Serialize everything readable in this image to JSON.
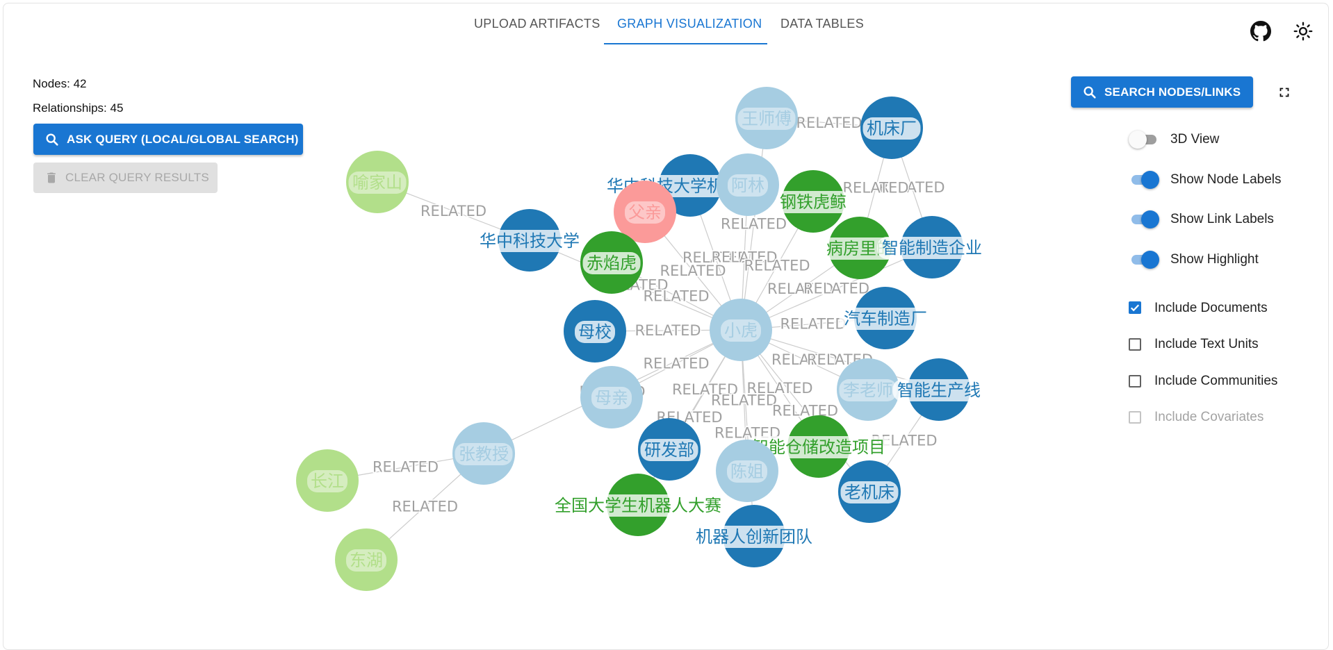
{
  "tabs": [
    {
      "label": "UPLOAD ARTIFACTS"
    },
    {
      "label": "GRAPH VISUALIZATION"
    },
    {
      "label": "DATA TABLES"
    }
  ],
  "active_tab": "GRAPH VISUALIZATION",
  "header_icons": [
    "github-icon",
    "sun-icon"
  ],
  "stats": {
    "nodes": "Nodes: 42",
    "relationships": "Relationships: 45"
  },
  "query": {
    "ask_label": "ASK QUERY (LOCAL/GLOBAL SEARCH)",
    "clear_label": "CLEAR QUERY RESULTS"
  },
  "search": {
    "label": "SEARCH NODES/LINKS"
  },
  "controls": {
    "switches": [
      {
        "label": "3D View",
        "on": false
      },
      {
        "label": "Show Node Labels",
        "on": true
      },
      {
        "label": "Show Link Labels",
        "on": true
      },
      {
        "label": "Show Highlight",
        "on": true
      }
    ],
    "checkboxes": [
      {
        "label": "Include Documents",
        "checked": true,
        "disabled": false
      },
      {
        "label": "Include Text Units",
        "checked": false,
        "disabled": false
      },
      {
        "label": "Include Communities",
        "checked": false,
        "disabled": false
      },
      {
        "label": "Include Covariates",
        "checked": false,
        "disabled": true
      }
    ]
  },
  "colors": {
    "accent": "#1976d2",
    "node_light_blue": "#a6cde2",
    "node_dark_blue": "#1f78b4",
    "node_green": "#33a02c",
    "node_light_green": "#b2df8a",
    "node_pink": "#fb9a99",
    "link": "#cccccc",
    "link_label": "#a0a0a0"
  },
  "graph": {
    "link_label": "RELATED",
    "nodes": [
      {
        "id": "王师傅",
        "group": "light_blue"
      },
      {
        "id": "机床厂",
        "group": "dark_blue"
      },
      {
        "id": "喻家山",
        "group": "light_green"
      },
      {
        "id": "华中科技大学机械学院",
        "group": "dark_blue"
      },
      {
        "id": "阿林",
        "group": "light_blue"
      },
      {
        "id": "钢铁虎鲸",
        "group": "green"
      },
      {
        "id": "父亲",
        "group": "pink"
      },
      {
        "id": "华中科技大学",
        "group": "dark_blue"
      },
      {
        "id": "赤焰虎",
        "group": "green"
      },
      {
        "id": "病房里的",
        "group": "green"
      },
      {
        "id": "智能制造企业",
        "group": "dark_blue"
      },
      {
        "id": "母校",
        "group": "dark_blue"
      },
      {
        "id": "小虎",
        "group": "light_blue"
      },
      {
        "id": "汽车制造厂",
        "group": "dark_blue"
      },
      {
        "id": "母亲",
        "group": "light_blue"
      },
      {
        "id": "李老师",
        "group": "light_blue"
      },
      {
        "id": "智能生产线",
        "group": "dark_blue"
      },
      {
        "id": "张教授",
        "group": "light_blue"
      },
      {
        "id": "研发部",
        "group": "dark_blue"
      },
      {
        "id": "智能仓储改造项目",
        "group": "green"
      },
      {
        "id": "陈姐",
        "group": "light_blue"
      },
      {
        "id": "长江",
        "group": "light_green"
      },
      {
        "id": "老机床",
        "group": "dark_blue"
      },
      {
        "id": "全国大学生机器人大赛",
        "group": "green"
      },
      {
        "id": "机器人创新团队",
        "group": "dark_blue"
      },
      {
        "id": "东湖",
        "group": "light_green"
      }
    ],
    "links": [
      [
        "王师傅",
        "机床厂"
      ],
      [
        "王师傅",
        "小虎"
      ],
      [
        "机床厂",
        "智能制造企业"
      ],
      [
        "机床厂",
        "病房里的"
      ],
      [
        "喻家山",
        "华中科技大学"
      ],
      [
        "华中科技大学",
        "小虎"
      ],
      [
        "华中科技大学机械学院",
        "小虎"
      ],
      [
        "阿林",
        "小虎"
      ],
      [
        "钢铁虎鲸",
        "小虎"
      ],
      [
        "父亲",
        "小虎"
      ],
      [
        "赤焰虎",
        "小虎"
      ],
      [
        "病房里的",
        "小虎"
      ],
      [
        "智能制造企业",
        "小虎"
      ],
      [
        "母校",
        "小虎"
      ],
      [
        "汽车制造厂",
        "小虎"
      ],
      [
        "母亲",
        "小虎"
      ],
      [
        "李老师",
        "小虎"
      ],
      [
        "智能生产线",
        "小虎"
      ],
      [
        "智能生产线",
        "老机床"
      ],
      [
        "张教授",
        "小虎"
      ],
      [
        "张教授",
        "长江"
      ],
      [
        "张教授",
        "东湖"
      ],
      [
        "研发部",
        "小虎"
      ],
      [
        "智能仓储改造项目",
        "小虎"
      ],
      [
        "陈姐",
        "小虎"
      ],
      [
        "全国大学生机器人大赛",
        "小虎"
      ],
      [
        "机器人创新团队",
        "小虎"
      ],
      [
        "老机床",
        "小虎"
      ]
    ]
  }
}
